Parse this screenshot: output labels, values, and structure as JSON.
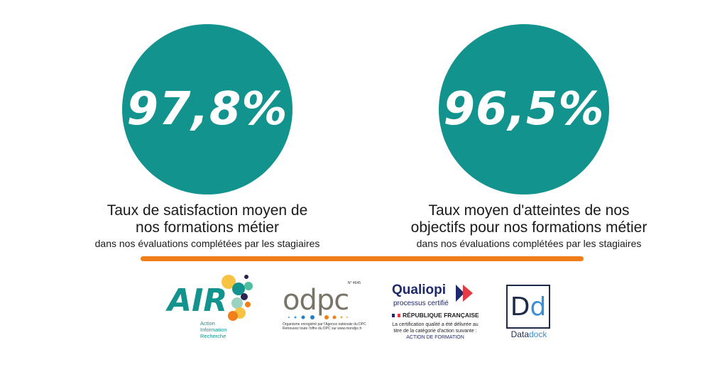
{
  "stats": [
    {
      "value": "97,8%",
      "title": "Taux de satisfaction moyen de nos formations métier",
      "subtitle": "dans nos évaluations complétées par les stagiaires"
    },
    {
      "value": "96,5%",
      "title": "Taux moyen d'atteintes de nos objectifs pour nos formations métier",
      "subtitle": "dans nos évaluations complétées par les stagiaires"
    }
  ],
  "colors": {
    "teal": "#13938e",
    "orange": "#f07f1a",
    "navy": "#1e2a6b"
  },
  "logos": {
    "air": {
      "name": "AIR",
      "line1": "Action",
      "line2": "Information",
      "line3": "Recherche"
    },
    "odpc": {
      "name": "odpc",
      "number": "N° 4645",
      "line1": "Organisme enregistré par l'Agence nationale du DPC",
      "line2": "Retrouvez toute l'offre du DPC sur www.mondpc.fr"
    },
    "qualiopi": {
      "name": "Qualiopi",
      "tagline": "processus certifié",
      "republique": "RÉPUBLIQUE FRANÇAISE",
      "line1": "La certification qualité a été délivrée au",
      "line2": "titre de la catégorie d'action suivante :",
      "line3": "ACTION DE FORMATION"
    },
    "datadock": {
      "mark_d1": "D",
      "mark_d2": "d",
      "name_part1": "Data",
      "name_part2": "dock"
    }
  }
}
